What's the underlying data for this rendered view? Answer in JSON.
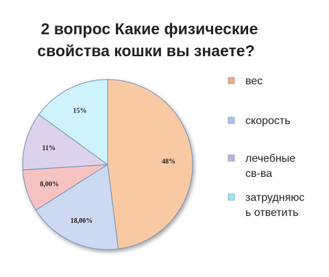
{
  "chart_data": {
    "type": "pie",
    "title_lines": [
      "2 вопрос Какие физические",
      "свойства кошки вы знаете?"
    ],
    "slices": [
      {
        "legend_lines": [
          "вес"
        ],
        "label": "48%",
        "value": 48,
        "color": "#f9c9a4",
        "legend_swatch": "#f5a878"
      },
      {
        "legend_lines": [
          "скорость"
        ],
        "label": "18,00%",
        "value": 18,
        "color": "#cdd9f2",
        "legend_swatch": "#aac0ec"
      },
      {
        "legend_lines": [],
        "label": "8,00%",
        "value": 8,
        "color": "#f6c2c2",
        "legend_swatch": null
      },
      {
        "legend_lines": [
          "лечебные",
          "св-ва"
        ],
        "label": "11%",
        "value": 11,
        "color": "#dcd2ec",
        "legend_swatch": "#c3b1dd"
      },
      {
        "legend_lines": [
          "затрудняюс",
          "ь ответить"
        ],
        "label": "15%",
        "value": 15,
        "color": "#cff3fb",
        "legend_swatch": "#9fe6f6"
      }
    ],
    "legend_position": "right"
  }
}
